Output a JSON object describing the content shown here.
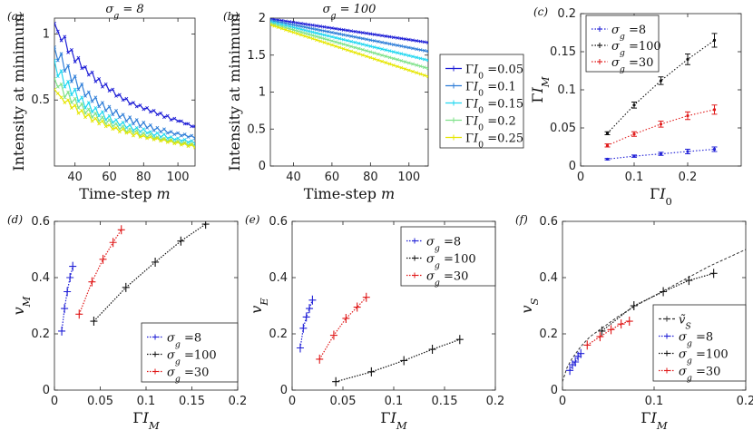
{
  "chart_data": [
    {
      "id": "a",
      "type": "line",
      "panel_label": "(a)",
      "title": "σ_g = 8",
      "xlabel": "Time-step m",
      "ylabel": "Intensity at minimum",
      "xlim": [
        28,
        110
      ],
      "ylim": [
        0,
        1.12
      ],
      "xticks": [
        40,
        60,
        80,
        100
      ],
      "yticks": [
        0.5,
        1
      ],
      "grid": false,
      "legend": null,
      "x_start": 28,
      "x_end": 110,
      "x_step": 2,
      "series": [
        {
          "name": "ΓI0 =0.05",
          "color": "#1f1fd6",
          "marker": "x",
          "values": [
            1.08,
            1.02,
            0.95,
            0.98,
            0.86,
            0.88,
            0.79,
            0.82,
            0.74,
            0.75,
            0.69,
            0.71,
            0.64,
            0.66,
            0.6,
            0.62,
            0.57,
            0.58,
            0.53,
            0.54,
            0.5,
            0.51,
            0.47,
            0.48,
            0.45,
            0.46,
            0.43,
            0.44,
            0.41,
            0.42,
            0.39,
            0.4,
            0.37,
            0.38,
            0.35,
            0.36,
            0.34,
            0.34,
            0.32,
            0.32,
            0.3,
            0.3
          ]
        },
        {
          "name": "ΓI0 =0.1",
          "color": "#2f7ed8",
          "marker": "x",
          "values": [
            0.9,
            0.8,
            0.85,
            0.72,
            0.76,
            0.64,
            0.68,
            0.58,
            0.62,
            0.53,
            0.56,
            0.49,
            0.52,
            0.45,
            0.48,
            0.42,
            0.45,
            0.39,
            0.42,
            0.37,
            0.39,
            0.34,
            0.37,
            0.32,
            0.35,
            0.3,
            0.33,
            0.29,
            0.31,
            0.27,
            0.29,
            0.26,
            0.28,
            0.25,
            0.26,
            0.24,
            0.25,
            0.23,
            0.24,
            0.22,
            0.23,
            0.21
          ]
        },
        {
          "name": "ΓI0 =0.15",
          "color": "#22d7f0",
          "marker": "x",
          "values": [
            0.8,
            0.68,
            0.72,
            0.6,
            0.64,
            0.54,
            0.58,
            0.49,
            0.52,
            0.44,
            0.48,
            0.41,
            0.44,
            0.38,
            0.41,
            0.35,
            0.38,
            0.33,
            0.35,
            0.31,
            0.33,
            0.29,
            0.31,
            0.27,
            0.29,
            0.26,
            0.28,
            0.25,
            0.26,
            0.23,
            0.25,
            0.22,
            0.24,
            0.21,
            0.22,
            0.2,
            0.21,
            0.19,
            0.2,
            0.18,
            0.19,
            0.17
          ]
        },
        {
          "name": "ΓI0 =0.2",
          "color": "#7fe28a",
          "marker": "x",
          "values": [
            0.66,
            0.6,
            0.62,
            0.52,
            0.56,
            0.48,
            0.51,
            0.44,
            0.47,
            0.4,
            0.43,
            0.37,
            0.4,
            0.34,
            0.37,
            0.32,
            0.35,
            0.3,
            0.32,
            0.28,
            0.3,
            0.26,
            0.28,
            0.25,
            0.27,
            0.23,
            0.25,
            0.22,
            0.24,
            0.21,
            0.22,
            0.2,
            0.21,
            0.19,
            0.2,
            0.18,
            0.19,
            0.17,
            0.18,
            0.16,
            0.17,
            0.15
          ]
        },
        {
          "name": "ΓI0 =0.25",
          "color": "#e6e600",
          "marker": "x",
          "values": [
            0.58,
            0.55,
            0.52,
            0.48,
            0.5,
            0.44,
            0.46,
            0.4,
            0.42,
            0.37,
            0.39,
            0.34,
            0.36,
            0.32,
            0.34,
            0.3,
            0.31,
            0.28,
            0.29,
            0.26,
            0.28,
            0.25,
            0.26,
            0.23,
            0.25,
            0.22,
            0.23,
            0.21,
            0.22,
            0.2,
            0.21,
            0.19,
            0.2,
            0.18,
            0.19,
            0.17,
            0.18,
            0.16,
            0.17,
            0.15,
            0.16,
            0.14
          ]
        }
      ]
    },
    {
      "id": "b",
      "type": "line",
      "panel_label": "(b)",
      "title": "σ_g = 100",
      "xlabel": "Time-step m",
      "ylabel": "Intensity at minimum",
      "xlim": [
        28,
        110
      ],
      "ylim": [
        0,
        2
      ],
      "xticks": [
        40,
        60,
        80,
        100
      ],
      "yticks": [
        0,
        0.5,
        1,
        1.5,
        2
      ],
      "grid": false,
      "legend": "outside-right",
      "x_start": 28,
      "x_end": 110,
      "x_step": 2,
      "series": [
        {
          "name": "ΓI0 =0.05",
          "color": "#1f1fd6",
          "marker": "x",
          "start": 1.99,
          "end": 1.67
        },
        {
          "name": "ΓI0 =0.1",
          "color": "#2f7ed8",
          "marker": "x",
          "start": 1.97,
          "end": 1.55
        },
        {
          "name": "ΓI0 =0.15",
          "color": "#22d7f0",
          "marker": "x",
          "start": 1.95,
          "end": 1.43
        },
        {
          "name": "ΓI0 =0.2",
          "color": "#7fe28a",
          "marker": "x",
          "start": 1.93,
          "end": 1.32
        },
        {
          "name": "ΓI0 =0.25",
          "color": "#e6e600",
          "marker": "x",
          "start": 1.91,
          "end": 1.21
        }
      ]
    },
    {
      "id": "c",
      "type": "line",
      "panel_label": "(c)",
      "title": "",
      "xlabel": "ΓI0",
      "ylabel": "ΓIM",
      "xlim": [
        0,
        0.3
      ],
      "ylim": [
        0,
        0.2
      ],
      "xticks": [
        0,
        0.1,
        0.2
      ],
      "yticks": [
        0,
        0.05,
        0.1,
        0.15,
        0.2
      ],
      "grid": false,
      "legend": "top-left",
      "x": [
        0.05,
        0.1,
        0.15,
        0.2,
        0.25
      ],
      "series": [
        {
          "name": "σ_g =8",
          "color": "#1f1fd6",
          "values": [
            0.009,
            0.013,
            0.016,
            0.019,
            0.022
          ],
          "errors": [
            0.001,
            0.0015,
            0.002,
            0.003,
            0.003
          ]
        },
        {
          "name": "σ_g =100",
          "color": "#111111",
          "values": [
            0.043,
            0.08,
            0.112,
            0.14,
            0.165
          ],
          "errors": [
            0.002,
            0.004,
            0.005,
            0.007,
            0.009
          ]
        },
        {
          "name": "σ_g =30",
          "color": "#e01a1a",
          "values": [
            0.027,
            0.042,
            0.055,
            0.066,
            0.074
          ],
          "errors": [
            0.002,
            0.003,
            0.004,
            0.005,
            0.006
          ]
        }
      ]
    },
    {
      "id": "d",
      "type": "line",
      "panel_label": "(d)",
      "title": "",
      "xlabel": "ΓIM",
      "ylabel": "vM",
      "xlim": [
        0,
        0.2
      ],
      "ylim": [
        0,
        0.6
      ],
      "xticks": [
        0,
        0.05,
        0.1,
        0.15,
        0.2
      ],
      "yticks": [
        0,
        0.2,
        0.4,
        0.6
      ],
      "grid": false,
      "legend": "bottom-right",
      "series": [
        {
          "name": "σ_g =8",
          "color": "#1f1fd6",
          "x": [
            0.008,
            0.011,
            0.014,
            0.017,
            0.02
          ],
          "values": [
            0.21,
            0.29,
            0.35,
            0.4,
            0.44
          ]
        },
        {
          "name": "σ_g =100",
          "color": "#111111",
          "x": [
            0.043,
            0.078,
            0.11,
            0.138,
            0.165
          ],
          "values": [
            0.245,
            0.365,
            0.455,
            0.53,
            0.59
          ]
        },
        {
          "name": "σ_g =30",
          "color": "#e01a1a",
          "x": [
            0.027,
            0.041,
            0.053,
            0.064,
            0.073
          ],
          "values": [
            0.27,
            0.385,
            0.465,
            0.525,
            0.57
          ]
        }
      ]
    },
    {
      "id": "e",
      "type": "line",
      "panel_label": "(e)",
      "title": "",
      "xlabel": "ΓIM",
      "ylabel": "vE",
      "xlim": [
        0,
        0.2
      ],
      "ylim": [
        0,
        0.6
      ],
      "xticks": [
        0,
        0.05,
        0.1,
        0.15,
        0.2
      ],
      "yticks": [
        0,
        0.2,
        0.4,
        0.6
      ],
      "grid": false,
      "legend": "top-right",
      "series": [
        {
          "name": "σ_g =8",
          "color": "#1f1fd6",
          "x": [
            0.008,
            0.011,
            0.014,
            0.017,
            0.02
          ],
          "values": [
            0.15,
            0.22,
            0.26,
            0.29,
            0.32
          ]
        },
        {
          "name": "σ_g =100",
          "color": "#111111",
          "x": [
            0.043,
            0.078,
            0.11,
            0.138,
            0.165
          ],
          "values": [
            0.03,
            0.065,
            0.105,
            0.145,
            0.18
          ]
        },
        {
          "name": "σ_g =30",
          "color": "#e01a1a",
          "x": [
            0.027,
            0.041,
            0.053,
            0.064,
            0.073
          ],
          "values": [
            0.11,
            0.195,
            0.255,
            0.295,
            0.33
          ]
        }
      ]
    },
    {
      "id": "f",
      "type": "line",
      "panel_label": "(f)",
      "title": "",
      "xlabel": "ΓIM",
      "ylabel": "vS",
      "xlim": [
        0,
        0.2
      ],
      "ylim": [
        0,
        0.6
      ],
      "xticks": [
        0,
        0.1,
        0.2
      ],
      "yticks": [
        0,
        0.2,
        0.4,
        0.6
      ],
      "grid": false,
      "legend": "bottom-right",
      "curve": {
        "name": "ṽS",
        "color": "#333333",
        "dash": true,
        "x": [
          0,
          0.005,
          0.01,
          0.02,
          0.03,
          0.045,
          0.06,
          0.08,
          0.1,
          0.12,
          0.14,
          0.16,
          0.18,
          0.2
        ],
        "values": [
          0.03,
          0.08,
          0.11,
          0.155,
          0.19,
          0.225,
          0.26,
          0.3,
          0.335,
          0.37,
          0.405,
          0.44,
          0.47,
          0.5
        ]
      },
      "series": [
        {
          "name": "σ_g =8",
          "color": "#1f1fd6",
          "x": [
            0.008,
            0.011,
            0.014,
            0.017,
            0.02
          ],
          "values": [
            0.07,
            0.09,
            0.1,
            0.12,
            0.13
          ]
        },
        {
          "name": "σ_g =100",
          "color": "#111111",
          "x": [
            0.043,
            0.078,
            0.11,
            0.138,
            0.165
          ],
          "values": [
            0.21,
            0.3,
            0.35,
            0.39,
            0.415
          ]
        },
        {
          "name": "σ_g =30",
          "color": "#e01a1a",
          "x": [
            0.027,
            0.041,
            0.053,
            0.064,
            0.073
          ],
          "values": [
            0.16,
            0.19,
            0.215,
            0.235,
            0.245
          ]
        }
      ]
    }
  ]
}
